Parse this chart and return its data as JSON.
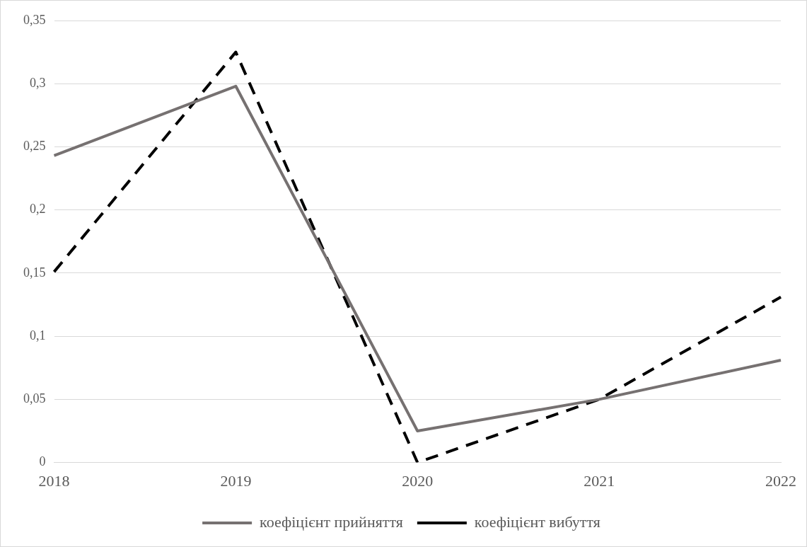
{
  "chart_data": {
    "type": "line",
    "categories": [
      "2018",
      "2019",
      "2020",
      "2021",
      "2022"
    ],
    "series": [
      {
        "name": "коефіцієнт прийняття",
        "color": "#767171",
        "values": [
          0.243,
          0.298,
          0.025,
          0.05,
          0.081
        ],
        "line_style": "solid"
      },
      {
        "name": "коефіцієнт вибуття",
        "color": "#000000",
        "values": [
          0.151,
          0.325,
          0,
          0.05,
          0.131
        ],
        "line_style": "dashed"
      }
    ],
    "ylim": [
      0,
      0.35
    ],
    "yticks": [
      {
        "value": 0,
        "label": "0"
      },
      {
        "value": 0.05,
        "label": "0,05"
      },
      {
        "value": 0.1,
        "label": "0,1"
      },
      {
        "value": 0.15,
        "label": "0,15"
      },
      {
        "value": 0.2,
        "label": "0,2"
      },
      {
        "value": 0.25,
        "label": "0,25"
      },
      {
        "value": 0.3,
        "label": "0,3"
      },
      {
        "value": 0.35,
        "label": "0,35"
      }
    ],
    "grid": "y",
    "legend": "bottom",
    "marker": "none"
  }
}
